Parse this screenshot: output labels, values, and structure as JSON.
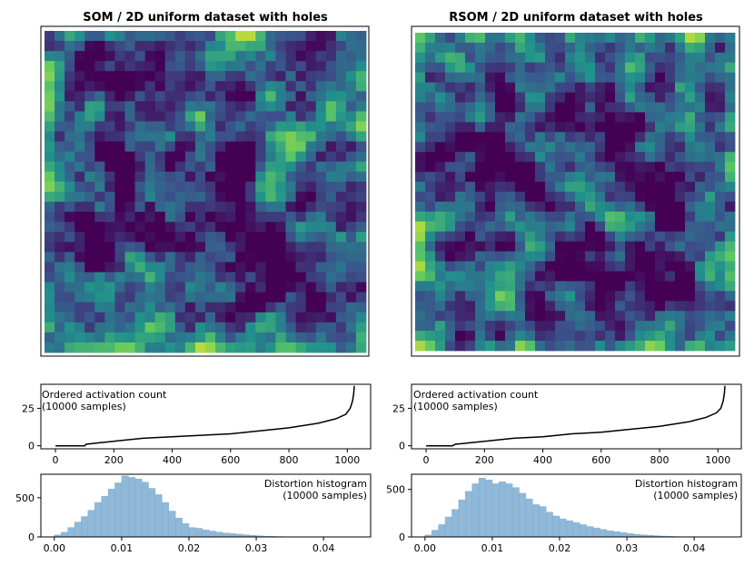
{
  "colors": {
    "viridis": [
      "#440154",
      "#3b528b",
      "#21918c",
      "#5ec962",
      "#fde725"
    ],
    "hist_fill": "#90b8d8",
    "hist_edge": "#7aa8cc",
    "line": "#000000"
  },
  "chart_data": [
    {
      "type": "heatmap",
      "id": "som_map",
      "title": "SOM / 2D uniform dataset with holes",
      "grid": [
        32,
        32
      ],
      "colormap": "viridis",
      "value_range": [
        0,
        1
      ],
      "seed": 11,
      "dark_paths": [
        [
          [
            0.12,
            0.16
          ],
          [
            0.3,
            0.15
          ],
          [
            0.38,
            0.12
          ]
        ],
        [
          [
            0.22,
            0.3
          ],
          [
            0.24,
            0.55
          ],
          [
            0.2,
            0.7
          ]
        ],
        [
          [
            0.22,
            0.57
          ],
          [
            0.45,
            0.62
          ],
          [
            0.62,
            0.6
          ],
          [
            0.78,
            0.72
          ]
        ],
        [
          [
            0.6,
            0.46
          ],
          [
            0.62,
            0.6
          ],
          [
            0.7,
            0.66
          ],
          [
            0.82,
            0.85
          ]
        ],
        [
          [
            0.55,
            0.3
          ],
          [
            0.62,
            0.45
          ]
        ]
      ]
    },
    {
      "type": "heatmap",
      "id": "rsom_map",
      "title": "RSOM / 2D uniform dataset with holes",
      "grid": [
        32,
        32
      ],
      "colormap": "viridis",
      "value_range": [
        0,
        1
      ],
      "seed": 23,
      "dark_paths": [
        [
          [
            0.1,
            0.32
          ],
          [
            0.3,
            0.42
          ],
          [
            0.4,
            0.5
          ]
        ],
        [
          [
            0.42,
            0.5
          ],
          [
            0.55,
            0.6
          ],
          [
            0.62,
            0.78
          ]
        ],
        [
          [
            0.6,
            0.2
          ],
          [
            0.62,
            0.38
          ],
          [
            0.72,
            0.45
          ],
          [
            0.8,
            0.58
          ]
        ],
        [
          [
            0.5,
            0.68
          ],
          [
            0.45,
            0.8
          ]
        ],
        [
          [
            0.68,
            0.85
          ],
          [
            0.85,
            0.8
          ]
        ]
      ]
    },
    {
      "type": "line",
      "id": "som_activation",
      "title": "",
      "annotation": [
        "Ordered activation count",
        "(10000 samples)"
      ],
      "x_range": [
        0,
        1024
      ],
      "xlim": [
        -50,
        1080
      ],
      "ylim": [
        -2,
        41
      ],
      "xticks": [
        0,
        200,
        400,
        600,
        800,
        1000
      ],
      "yticks": [
        0,
        25
      ],
      "curve": [
        [
          0,
          0
        ],
        [
          100,
          0
        ],
        [
          105,
          1
        ],
        [
          150,
          2
        ],
        [
          200,
          3
        ],
        [
          300,
          5
        ],
        [
          400,
          6
        ],
        [
          500,
          7
        ],
        [
          600,
          8
        ],
        [
          700,
          10
        ],
        [
          800,
          12
        ],
        [
          900,
          15
        ],
        [
          960,
          18
        ],
        [
          995,
          21
        ],
        [
          1010,
          25
        ],
        [
          1018,
          30
        ],
        [
          1022,
          35
        ],
        [
          1024,
          40
        ]
      ]
    },
    {
      "type": "line",
      "id": "rsom_activation",
      "title": "",
      "annotation": [
        "Ordered activation count",
        "(10000 samples)"
      ],
      "x_range": [
        0,
        1024
      ],
      "xlim": [
        -50,
        1080
      ],
      "ylim": [
        -2,
        41
      ],
      "xticks": [
        0,
        200,
        400,
        600,
        800,
        1000
      ],
      "yticks": [
        0,
        25
      ],
      "curve": [
        [
          0,
          0
        ],
        [
          90,
          0
        ],
        [
          100,
          1
        ],
        [
          150,
          2
        ],
        [
          200,
          3
        ],
        [
          300,
          5
        ],
        [
          400,
          6
        ],
        [
          500,
          8
        ],
        [
          600,
          9
        ],
        [
          700,
          11
        ],
        [
          800,
          13
        ],
        [
          900,
          16
        ],
        [
          960,
          19
        ],
        [
          995,
          22
        ],
        [
          1010,
          25
        ],
        [
          1018,
          30
        ],
        [
          1022,
          35
        ],
        [
          1024,
          40
        ]
      ]
    },
    {
      "type": "bar",
      "id": "som_distortion",
      "title": "",
      "annotation": [
        "Distortion histogram",
        "(10000 samples)"
      ],
      "bin_start": 0.0,
      "bin_width": 0.001,
      "xlim": [
        -0.002,
        0.047
      ],
      "ylim": [
        0,
        800
      ],
      "xticks": [
        0.0,
        0.01,
        0.02,
        0.03,
        0.04
      ],
      "xtick_labels": [
        "0.00",
        "0.01",
        "0.02",
        "0.03",
        "0.04"
      ],
      "yticks": [
        0,
        500
      ],
      "values": [
        25,
        60,
        120,
        190,
        260,
        340,
        440,
        520,
        610,
        690,
        780,
        760,
        740,
        700,
        620,
        540,
        440,
        330,
        240,
        170,
        120,
        110,
        90,
        75,
        60,
        50,
        42,
        35,
        28,
        20,
        15,
        10,
        7,
        5,
        3,
        2,
        1,
        1,
        0,
        0,
        0,
        0,
        0,
        0,
        0
      ]
    },
    {
      "type": "bar",
      "id": "rsom_distortion",
      "title": "",
      "annotation": [
        "Distortion histogram",
        "(10000 samples)"
      ],
      "bin_start": 0.0,
      "bin_width": 0.001,
      "xlim": [
        -0.002,
        0.047
      ],
      "ylim": [
        0,
        660
      ],
      "xticks": [
        0.0,
        0.01,
        0.02,
        0.03,
        0.04
      ],
      "xtick_labels": [
        "0.00",
        "0.01",
        "0.02",
        "0.03",
        "0.04"
      ],
      "yticks": [
        0,
        500
      ],
      "values": [
        20,
        70,
        130,
        210,
        290,
        390,
        480,
        560,
        620,
        600,
        560,
        580,
        560,
        520,
        460,
        400,
        340,
        320,
        260,
        220,
        190,
        170,
        150,
        130,
        110,
        95,
        80,
        65,
        55,
        45,
        35,
        28,
        22,
        18,
        12,
        9,
        6,
        4,
        3,
        2,
        1,
        1,
        0,
        0,
        0
      ]
    }
  ]
}
